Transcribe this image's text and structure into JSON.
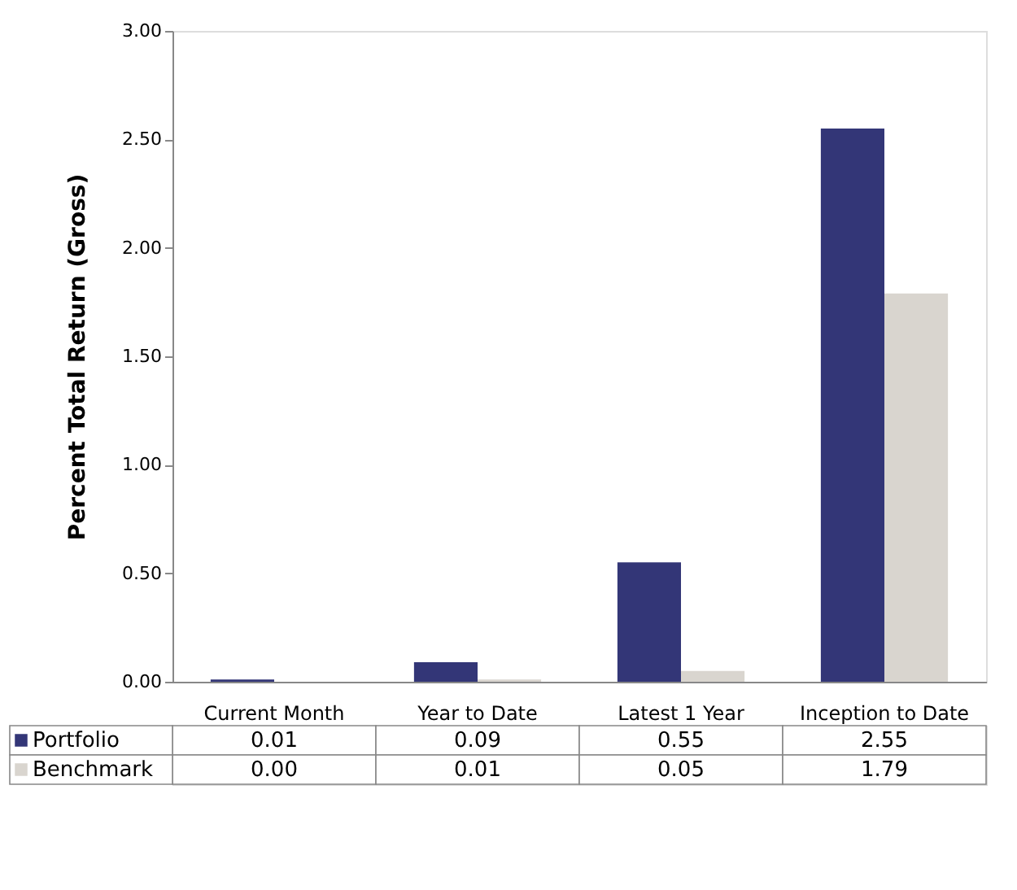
{
  "chart_data": {
    "type": "bar",
    "ylabel": "Percent Total Return (Gross)",
    "categories": [
      "Current Month",
      "Year to Date",
      "Latest 1 Year",
      "Inception to Date"
    ],
    "series": [
      {
        "name": "Portfolio",
        "color": "#333677",
        "values": [
          0.01,
          0.09,
          0.55,
          2.55
        ],
        "value_labels": [
          "0.01",
          "0.09",
          "0.55",
          "2.55"
        ]
      },
      {
        "name": "Benchmark",
        "color": "#d9d5cf",
        "values": [
          0.0,
          0.01,
          0.05,
          1.79
        ],
        "value_labels": [
          "0.00",
          "0.01",
          "0.05",
          "1.79"
        ]
      }
    ],
    "ylim": [
      0,
      3
    ],
    "yticks": [
      {
        "value": 0,
        "label": "0.00"
      },
      {
        "value": 0.5,
        "label": "0.50"
      },
      {
        "value": 1,
        "label": "1.00"
      },
      {
        "value": 1.5,
        "label": "1.50"
      },
      {
        "value": 2,
        "label": "2.00"
      },
      {
        "value": 2.5,
        "label": "2.50"
      },
      {
        "value": 3,
        "label": "3.00"
      }
    ],
    "grid": false,
    "legend": "bottom"
  }
}
